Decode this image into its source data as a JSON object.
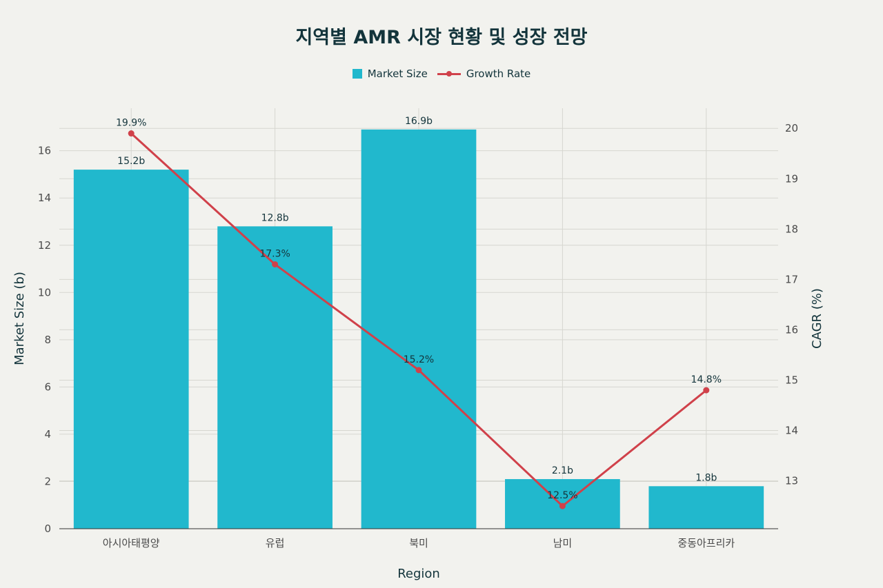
{
  "chart_data": {
    "type": "bar",
    "title": "지역별 AMR 시장 현황 및 성장 전망",
    "xlabel": "Region",
    "ylabel": "Market Size (b)",
    "y2label": "CAGR (%)",
    "categories": [
      "아시아태평양",
      "유럽",
      "북미",
      "남미",
      "중동아프리카"
    ],
    "series": [
      {
        "name": "Market Size",
        "type": "bar",
        "axis": "left",
        "values": [
          15.2,
          12.8,
          16.9,
          2.1,
          1.8
        ],
        "labels": [
          "15.2b",
          "12.8b",
          "16.9b",
          "2.1b",
          "1.8b"
        ],
        "color": "#21b8cd"
      },
      {
        "name": "Growth Rate",
        "type": "line",
        "axis": "right",
        "values": [
          19.9,
          17.3,
          15.2,
          12.5,
          14.8
        ],
        "labels": [
          "19.9%",
          "17.3%",
          "15.2%",
          "12.5%",
          "14.8%"
        ],
        "color": "#d0414a"
      }
    ],
    "ylim": [
      0,
      17.8
    ],
    "y2lim": [
      12.05,
      20.4
    ],
    "yticks": [
      0,
      2,
      4,
      6,
      8,
      10,
      12,
      14,
      16
    ],
    "y2ticks": [
      13,
      14,
      15,
      16,
      17,
      18,
      19,
      20
    ],
    "grid": true,
    "legend": "top-center"
  }
}
